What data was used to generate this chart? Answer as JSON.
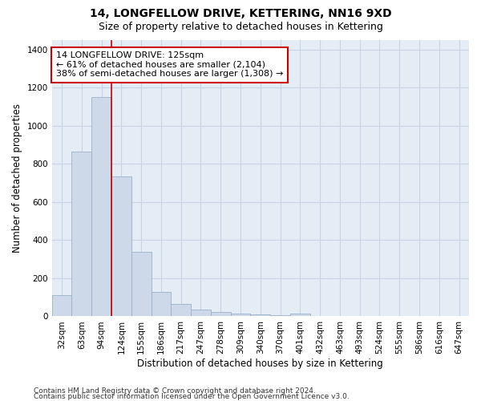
{
  "title": "14, LONGFELLOW DRIVE, KETTERING, NN16 9XD",
  "subtitle": "Size of property relative to detached houses in Kettering",
  "xlabel": "Distribution of detached houses by size in Kettering",
  "ylabel": "Number of detached properties",
  "categories": [
    "32sqm",
    "63sqm",
    "94sqm",
    "124sqm",
    "155sqm",
    "186sqm",
    "217sqm",
    "247sqm",
    "278sqm",
    "309sqm",
    "340sqm",
    "370sqm",
    "401sqm",
    "432sqm",
    "463sqm",
    "493sqm",
    "524sqm",
    "555sqm",
    "586sqm",
    "616sqm",
    "647sqm"
  ],
  "values": [
    110,
    865,
    1150,
    735,
    340,
    130,
    65,
    37,
    25,
    15,
    10,
    5,
    15,
    0,
    0,
    0,
    0,
    0,
    0,
    0,
    0
  ],
  "bar_color": "#cdd9e8",
  "bar_edge_color": "#9ab0c8",
  "vline_x": 2.5,
  "property_label": "14 LONGFELLOW DRIVE: 125sqm",
  "annotation_line1": "← 61% of detached houses are smaller (2,104)",
  "annotation_line2": "38% of semi-detached houses are larger (1,308) →",
  "annotation_box_color": "#ffffff",
  "annotation_box_edge_color": "#cc0000",
  "vline_color": "#cc0000",
  "ylim": [
    0,
    1450
  ],
  "yticks": [
    0,
    200,
    400,
    600,
    800,
    1000,
    1200,
    1400
  ],
  "grid_color": "#c8d4e4",
  "background_color": "#e4edf6",
  "footer_line1": "Contains HM Land Registry data © Crown copyright and database right 2024.",
  "footer_line2": "Contains public sector information licensed under the Open Government Licence v3.0.",
  "title_fontsize": 10,
  "subtitle_fontsize": 9,
  "xlabel_fontsize": 8.5,
  "ylabel_fontsize": 8.5,
  "tick_fontsize": 7.5,
  "annotation_fontsize": 8,
  "footer_fontsize": 6.5
}
